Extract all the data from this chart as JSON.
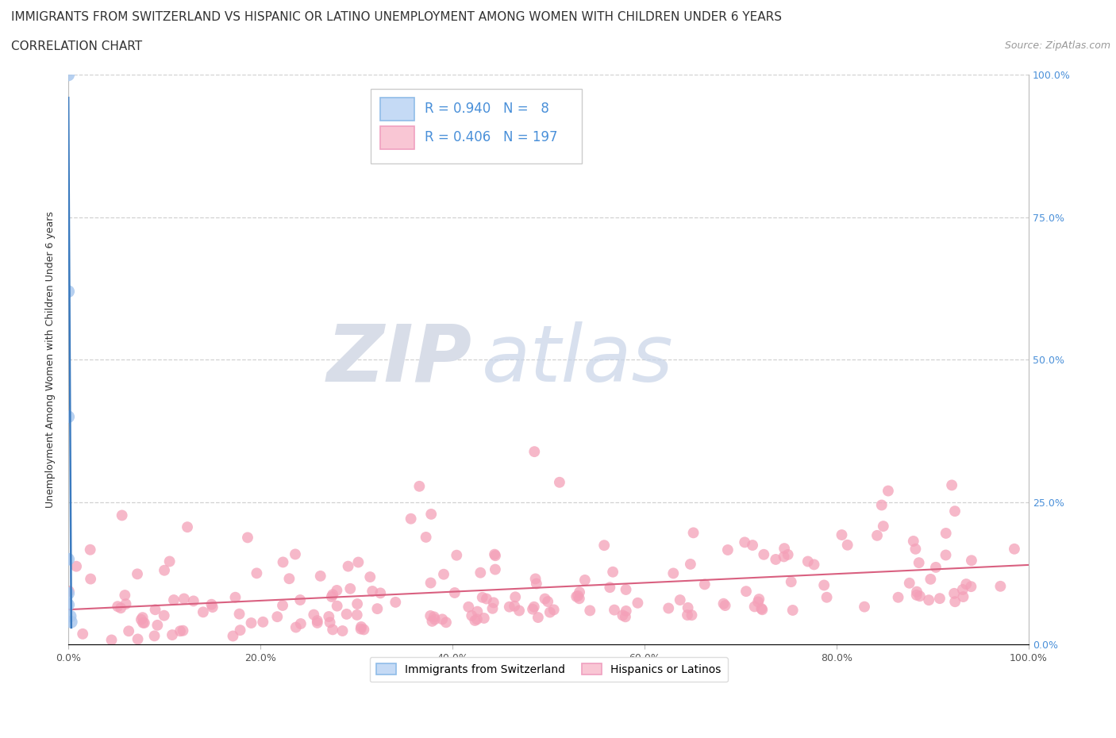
{
  "title_line1": "IMMIGRANTS FROM SWITZERLAND VS HISPANIC OR LATINO UNEMPLOYMENT AMONG WOMEN WITH CHILDREN UNDER 6 YEARS",
  "title_line2": "CORRELATION CHART",
  "source_text": "Source: ZipAtlas.com",
  "ylabel": "Unemployment Among Women with Children Under 6 years",
  "watermark_zip": "ZIP",
  "watermark_atlas": "atlas",
  "blue_R": 0.94,
  "blue_N": 8,
  "pink_R": 0.406,
  "pink_N": 197,
  "blue_scatter_color": "#aac8ee",
  "pink_scatter_color": "#f4a0b8",
  "blue_line_color": "#3a7abf",
  "pink_line_color": "#d96080",
  "legend_blue_fill": "#c5daf5",
  "legend_pink_fill": "#f9c6d4",
  "legend_blue_border": "#90bce8",
  "legend_pink_border": "#f0a0c0",
  "right_label_color": "#4a90d9",
  "grid_color": "#cccccc",
  "background_color": "#ffffff",
  "title_fontsize": 11,
  "axis_label_fontsize": 9,
  "legend_fontsize": 12
}
